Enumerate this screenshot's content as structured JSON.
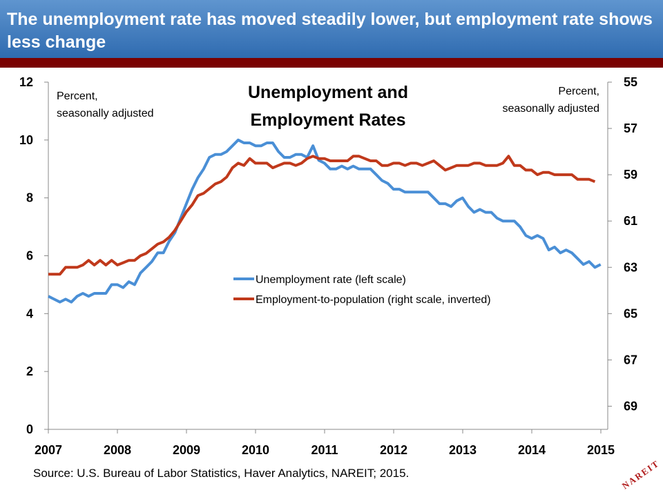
{
  "header": {
    "title": "The unemployment rate has moved steadily lower, but employment rate shows less change"
  },
  "source": "Source: U.S. Bureau of Labor Statistics, Haver Analytics, NAREIT; 2015.",
  "logo_text": "NAREIT",
  "colors": {
    "header_bg": "#4a86c8",
    "header_rule": "#7a0000",
    "unemployment": "#4a8fd6",
    "employment": "#c0391b"
  },
  "chart_data": {
    "type": "line",
    "title": "Unemployment and Employment Rates",
    "title_lines": [
      "Unemployment and",
      "Employment Rates"
    ],
    "left_axis_note": [
      "Percent,",
      "seasonally adjusted"
    ],
    "right_axis_note": [
      "Percent,",
      "seasonally adjusted"
    ],
    "x_range": [
      2007,
      2015.1
    ],
    "x_ticks": [
      "2007",
      "2008",
      "2009",
      "2010",
      "2011",
      "2012",
      "2013",
      "2014",
      "2015"
    ],
    "y_left": {
      "range": [
        0,
        12
      ],
      "ticks": [
        "0",
        "2",
        "4",
        "6",
        "8",
        "10",
        "12"
      ]
    },
    "y_right": {
      "range": [
        55,
        70
      ],
      "inverted": true,
      "ticks": [
        "55",
        "57",
        "59",
        "61",
        "63",
        "65",
        "67",
        "69"
      ]
    },
    "grid": false,
    "legend_position": "center",
    "series": [
      {
        "name": "Unemployment rate (left scale)",
        "axis": "left",
        "x_start": 2007.0,
        "x_step": 0.0833,
        "values": [
          4.6,
          4.5,
          4.4,
          4.5,
          4.4,
          4.6,
          4.7,
          4.6,
          4.7,
          4.7,
          4.7,
          5.0,
          5.0,
          4.9,
          5.1,
          5.0,
          5.4,
          5.6,
          5.8,
          6.1,
          6.1,
          6.5,
          6.8,
          7.3,
          7.8,
          8.3,
          8.7,
          9.0,
          9.4,
          9.5,
          9.5,
          9.6,
          9.8,
          10.0,
          9.9,
          9.9,
          9.8,
          9.8,
          9.9,
          9.9,
          9.6,
          9.4,
          9.4,
          9.5,
          9.5,
          9.4,
          9.8,
          9.3,
          9.2,
          9.0,
          9.0,
          9.1,
          9.0,
          9.1,
          9.0,
          9.0,
          9.0,
          8.8,
          8.6,
          8.5,
          8.3,
          8.3,
          8.2,
          8.2,
          8.2,
          8.2,
          8.2,
          8.0,
          7.8,
          7.8,
          7.7,
          7.9,
          8.0,
          7.7,
          7.5,
          7.6,
          7.5,
          7.5,
          7.3,
          7.2,
          7.2,
          7.2,
          7.0,
          6.7,
          6.6,
          6.7,
          6.6,
          6.2,
          6.3,
          6.1,
          6.2,
          6.1,
          5.9,
          5.7,
          5.8,
          5.6,
          5.7
        ]
      },
      {
        "name": "Employment-to-population (right scale, inverted)",
        "axis": "right",
        "x_start": 2007.0,
        "x_step": 0.0833,
        "values": [
          63.3,
          63.3,
          63.3,
          63.0,
          63.0,
          63.0,
          62.9,
          62.7,
          62.9,
          62.7,
          62.9,
          62.7,
          62.9,
          62.8,
          62.7,
          62.7,
          62.5,
          62.4,
          62.2,
          62.0,
          61.9,
          61.7,
          61.4,
          61.0,
          60.6,
          60.3,
          59.9,
          59.8,
          59.6,
          59.4,
          59.3,
          59.1,
          58.7,
          58.5,
          58.6,
          58.3,
          58.5,
          58.5,
          58.5,
          58.7,
          58.6,
          58.5,
          58.5,
          58.6,
          58.5,
          58.3,
          58.2,
          58.3,
          58.3,
          58.4,
          58.4,
          58.4,
          58.4,
          58.2,
          58.2,
          58.3,
          58.4,
          58.4,
          58.6,
          58.6,
          58.5,
          58.5,
          58.6,
          58.5,
          58.5,
          58.6,
          58.5,
          58.4,
          58.6,
          58.8,
          58.7,
          58.6,
          58.6,
          58.6,
          58.5,
          58.5,
          58.6,
          58.6,
          58.6,
          58.5,
          58.2,
          58.6,
          58.6,
          58.8,
          58.8,
          59.0,
          58.9,
          58.9,
          59.0,
          59.0,
          59.0,
          59.0,
          59.2,
          59.2,
          59.2,
          59.3
        ]
      }
    ]
  }
}
